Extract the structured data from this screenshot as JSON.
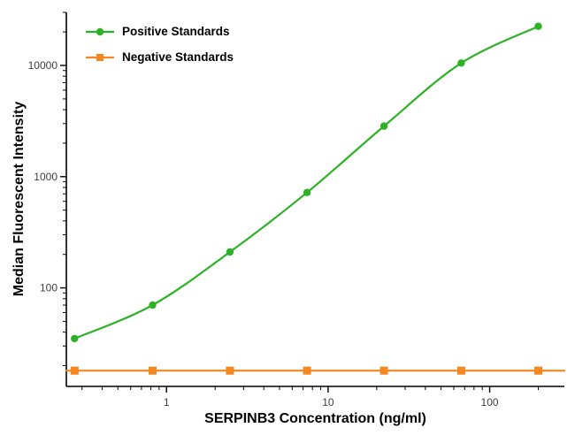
{
  "chart_data": {
    "type": "line",
    "title": "",
    "xlabel": "SERPINB3 Concentration (ng/ml)",
    "ylabel": "Median Fluorescent Intensity",
    "x_scale": "log",
    "y_scale": "log",
    "x_range": [
      0.24,
      290
    ],
    "y_range": [
      13,
      30000
    ],
    "x_major_ticks": [
      1,
      10,
      100
    ],
    "y_major_ticks": [
      100,
      1000,
      10000
    ],
    "grid": false,
    "legend_position": "top-left",
    "axis_color": "#000000",
    "tick_label_color": "#3d3d3d",
    "series": [
      {
        "name": "Positive Standards",
        "color": "#2db226",
        "marker": "circle",
        "line_span": "data",
        "x": [
          0.27,
          0.82,
          2.47,
          7.41,
          22.2,
          66.7,
          200
        ],
        "y": [
          35,
          70,
          210,
          720,
          2850,
          10500,
          22500
        ]
      },
      {
        "name": "Negative Standards",
        "color": "#f6861f",
        "marker": "square",
        "line_span": "full",
        "x": [
          0.27,
          0.82,
          2.47,
          7.41,
          22.2,
          66.7,
          200
        ],
        "y": [
          18,
          18,
          18,
          18,
          18,
          18,
          18
        ]
      }
    ]
  }
}
